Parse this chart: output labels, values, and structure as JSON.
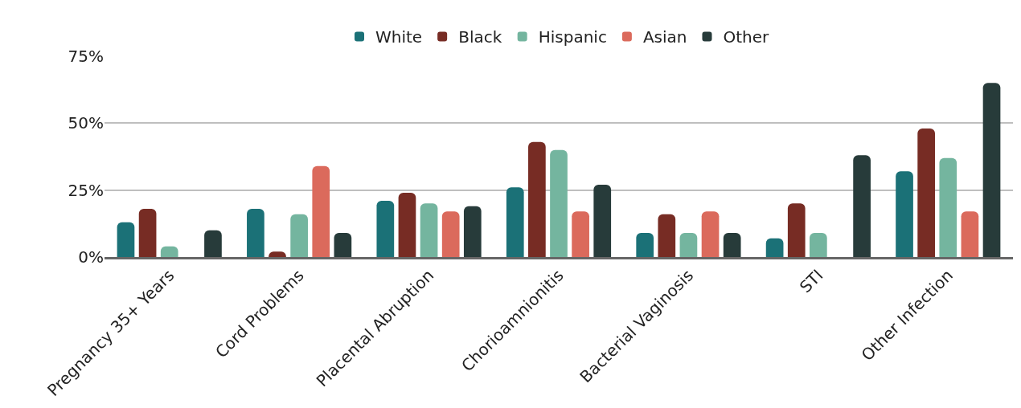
{
  "chart_data": {
    "type": "bar",
    "categories": [
      "Pregnancy 35+ Years",
      "Cord Problems",
      "Placental Abruption",
      "Chorioamnionitis",
      "Bacterial Vaginosis",
      "STI",
      "Other Infection"
    ],
    "series": [
      {
        "name": "White",
        "color": "#1b7177",
        "values": [
          13,
          18,
          21,
          26,
          9,
          7,
          32
        ]
      },
      {
        "name": "Black",
        "color": "#772c24",
        "values": [
          18,
          2,
          24,
          43,
          16,
          20,
          48
        ]
      },
      {
        "name": "Hispanic",
        "color": "#74b59f",
        "values": [
          4,
          16,
          20,
          40,
          9,
          9,
          37
        ]
      },
      {
        "name": "Asian",
        "color": "#db6a5c",
        "values": [
          0,
          34,
          17,
          17,
          17,
          0,
          17
        ]
      },
      {
        "name": "Other",
        "color": "#273b3a",
        "values": [
          10,
          9,
          19,
          27,
          9,
          38,
          65
        ]
      }
    ],
    "ylim": [
      0,
      75
    ],
    "yticks": [
      {
        "value": 0,
        "label": "0%"
      },
      {
        "value": 25,
        "label": "25%"
      },
      {
        "value": 50,
        "label": "50%"
      },
      {
        "value": 75,
        "label": "75%"
      }
    ],
    "grid": "y",
    "legend": "top"
  }
}
